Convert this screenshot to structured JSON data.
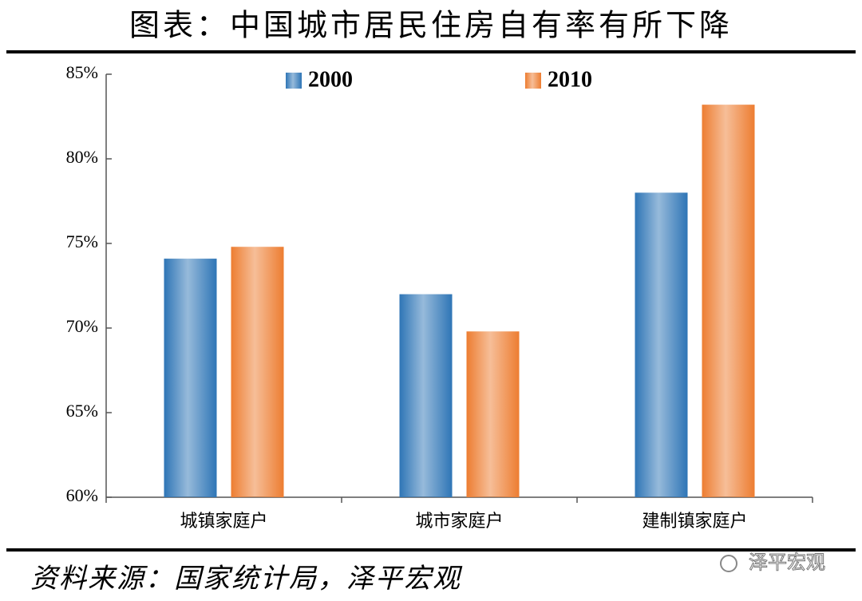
{
  "chart_data": {
    "type": "bar",
    "title": "图表：中国城市居民住房自有率有所下降",
    "categories": [
      "城镇家庭户",
      "城市家庭户",
      "建制镇家庭户"
    ],
    "series": [
      {
        "name": "2000",
        "color": "#2e75b6",
        "values": [
          74.1,
          72.0,
          78.0
        ]
      },
      {
        "name": "2010",
        "color": "#ed7d31",
        "values": [
          74.8,
          69.8,
          83.2
        ]
      }
    ],
    "ylim": [
      60,
      85
    ],
    "yticks": [
      {
        "value": 60,
        "label": "60%"
      },
      {
        "value": 65,
        "label": "65%"
      },
      {
        "value": 70,
        "label": "70%"
      },
      {
        "value": 75,
        "label": "75%"
      },
      {
        "value": 80,
        "label": "80%"
      },
      {
        "value": 85,
        "label": "85%"
      }
    ],
    "source": "资料来源：国家统计局，泽平宏观",
    "watermark": "泽平宏观"
  }
}
